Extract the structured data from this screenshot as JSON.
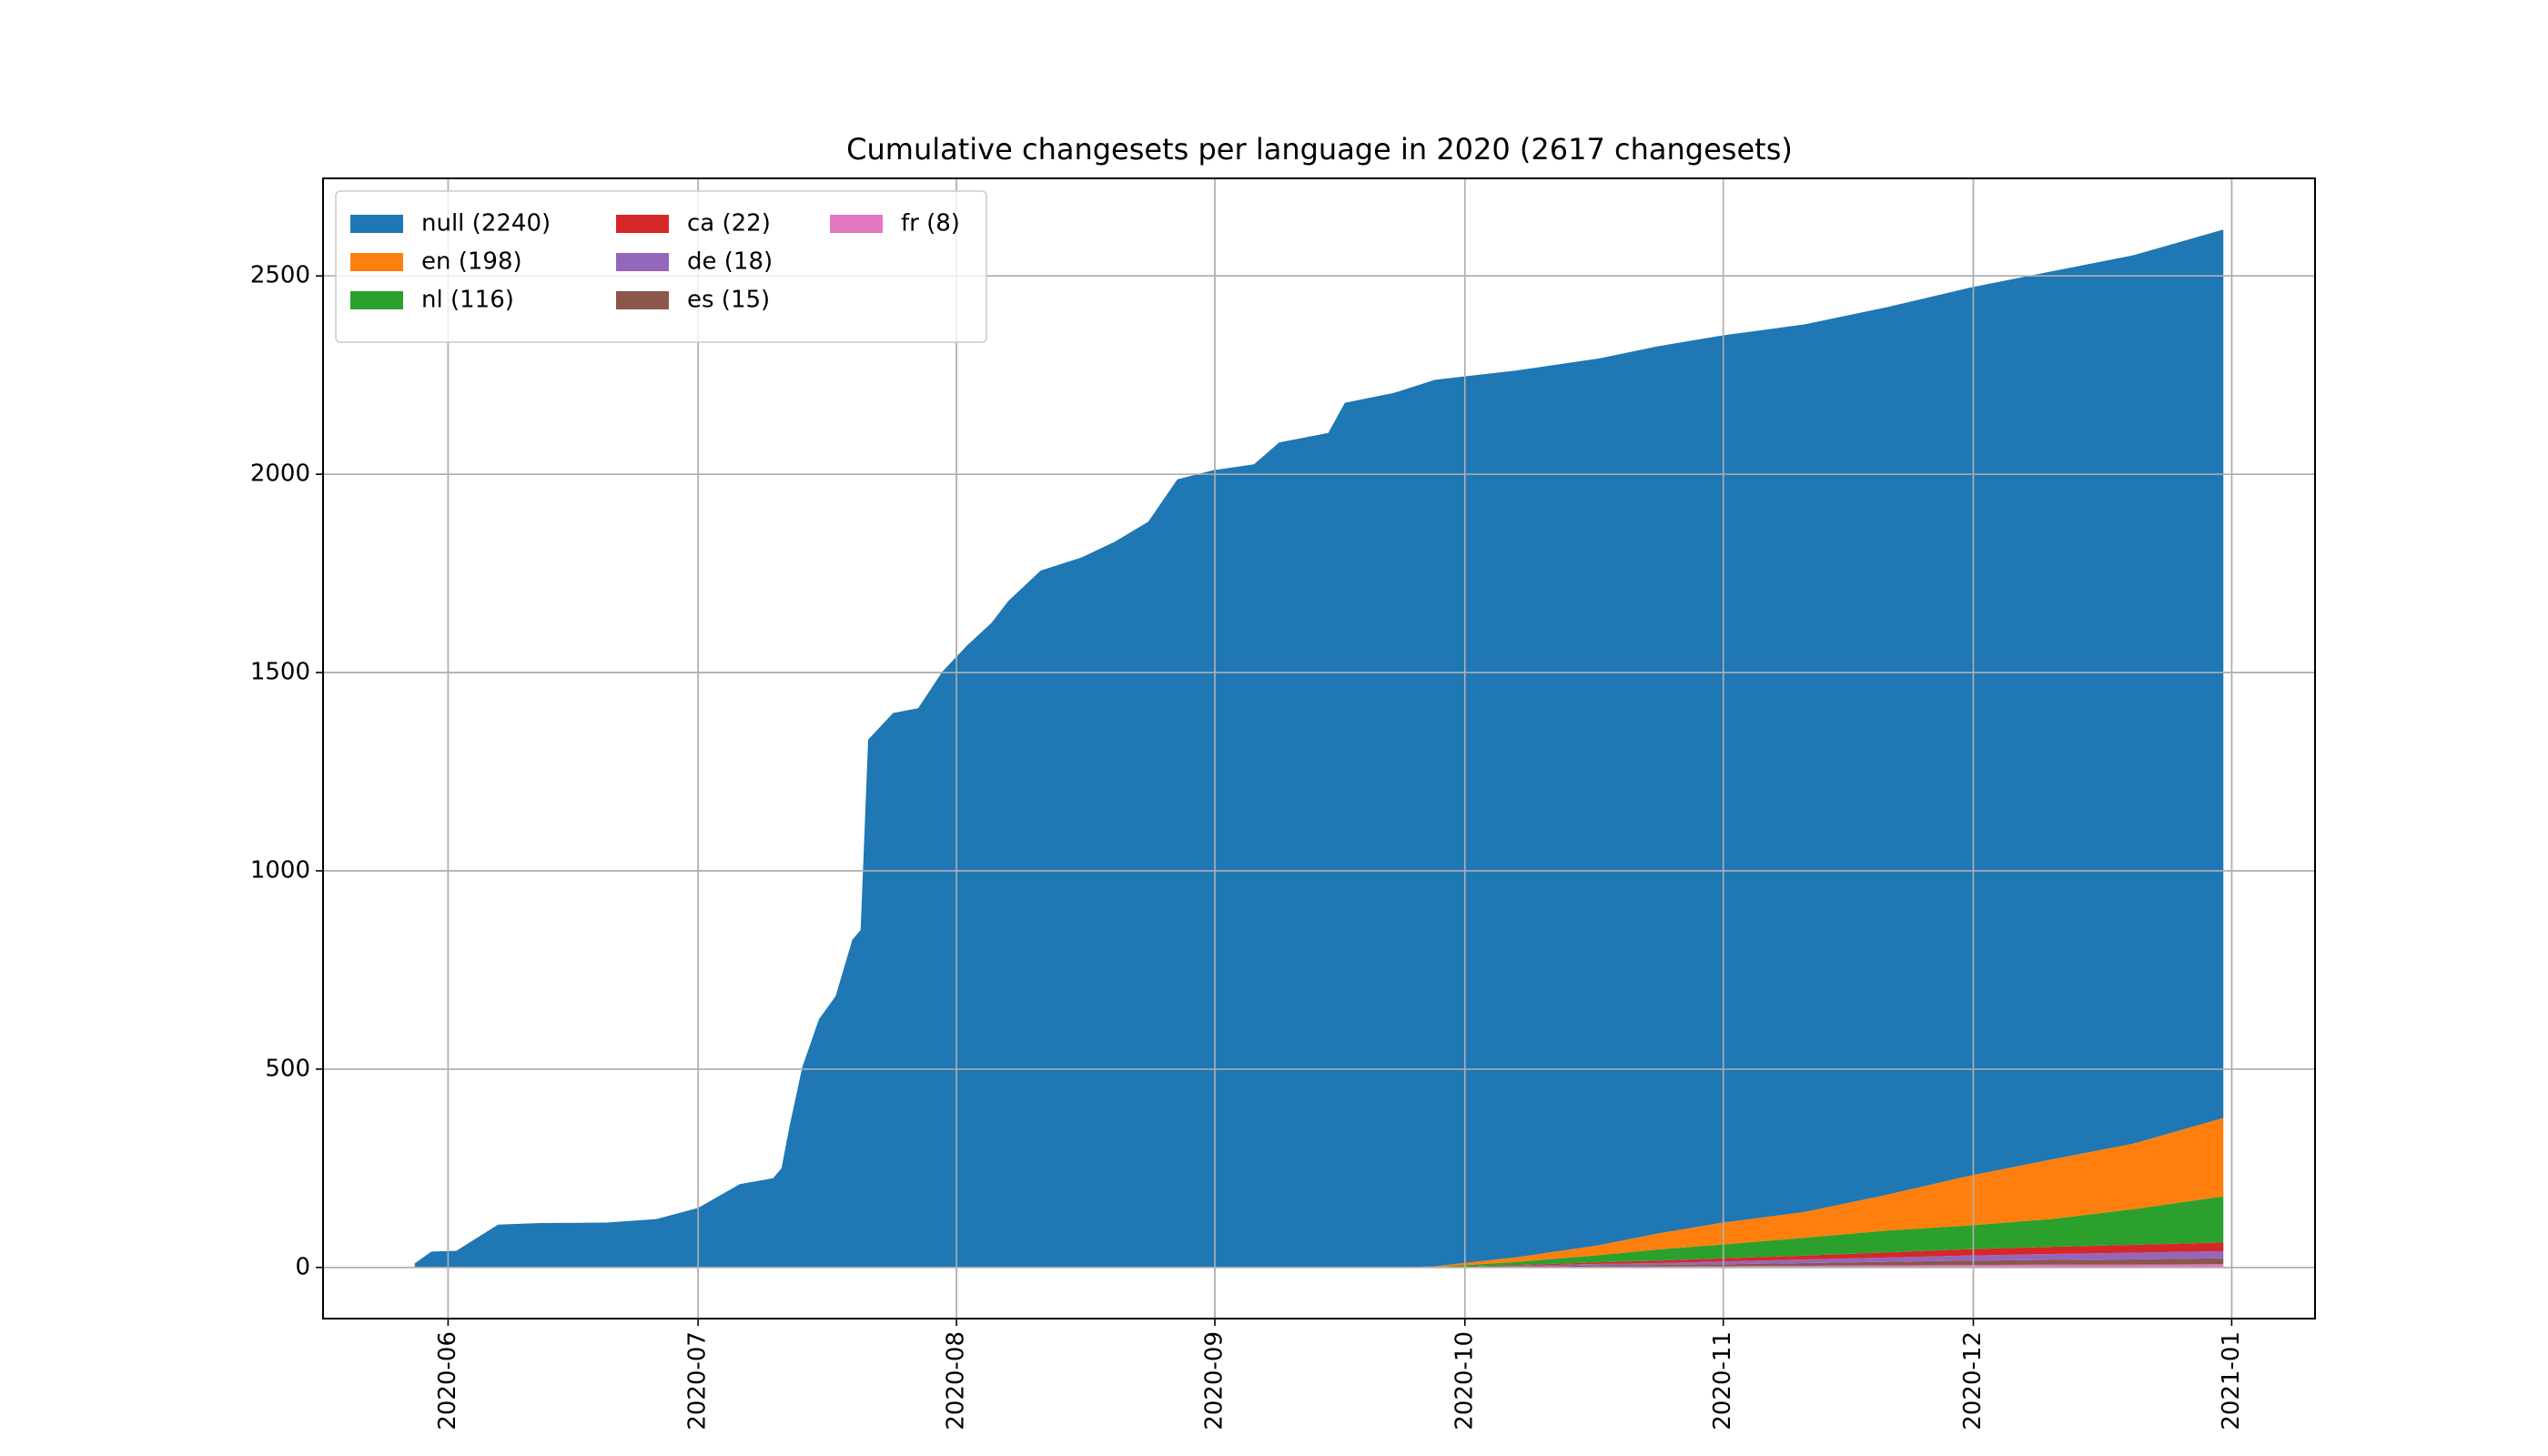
{
  "chart_data": {
    "type": "stackedarea",
    "title": "Cumulative changesets per language in 2020 (2617 changesets)",
    "x": [
      148,
      150,
      153,
      158,
      163,
      171,
      177,
      182,
      187,
      191,
      192,
      193,
      194.5,
      196.5,
      198.5,
      200.5,
      201.5,
      202.4,
      205.4,
      208.4,
      211.3,
      214.3,
      217.2,
      219.2,
      223.1,
      228,
      232,
      236,
      239.5,
      243.8,
      248.7,
      251.7,
      257.6,
      259.6,
      265.5,
      270.4,
      280.3,
      290.1,
      297,
      304.9,
      314.8,
      324.6,
      334.5,
      344.3,
      354.2,
      365
    ],
    "series": [
      {
        "name": "null (2240)",
        "color": "#1f77b4",
        "values": [
          10,
          40,
          42,
          108,
          112,
          113,
          122,
          150,
          210,
          225,
          250,
          359,
          505,
          626,
          684,
          826,
          851,
          1331,
          1398,
          1410,
          1502,
          1569,
          1625,
          1680,
          1757,
          1790,
          1830,
          1880,
          1987,
          2010,
          2025,
          2080,
          2104,
          2180,
          2205,
          2235,
          2236,
          2236,
          2237,
          2237,
          2238,
          2238,
          2239,
          2239,
          2240,
          2240
        ]
      },
      {
        "name": "en (198)",
        "color": "#ff7f0e",
        "values": [
          0,
          0,
          0,
          0,
          0,
          0,
          0,
          0,
          0,
          0,
          0,
          0,
          0,
          0,
          0,
          0,
          0,
          0,
          0,
          0,
          0,
          0,
          0,
          0,
          0,
          0,
          0,
          0,
          0,
          0,
          0,
          0,
          0,
          0,
          0,
          2,
          12,
          25,
          40,
          55,
          65,
          90,
          125,
          150,
          165,
          198
        ]
      },
      {
        "name": "nl (116)",
        "color": "#2ca02c",
        "values": [
          0,
          0,
          0,
          0,
          0,
          0,
          0,
          0,
          0,
          0,
          0,
          0,
          0,
          0,
          0,
          0,
          0,
          0,
          0,
          0,
          0,
          0,
          0,
          0,
          0,
          0,
          0,
          0,
          0,
          0,
          0,
          0,
          0,
          0,
          0,
          1,
          8,
          18,
          28,
          35,
          45,
          55,
          60,
          70,
          90,
          116
        ]
      },
      {
        "name": "ca (22)",
        "color": "#d62728",
        "values": [
          0,
          0,
          0,
          0,
          0,
          0,
          0,
          0,
          0,
          0,
          0,
          0,
          0,
          0,
          0,
          0,
          0,
          0,
          0,
          0,
          0,
          0,
          0,
          0,
          0,
          0,
          0,
          0,
          0,
          0,
          0,
          0,
          0,
          0,
          0,
          0,
          2,
          4,
          6,
          8,
          10,
          13,
          16,
          18,
          20,
          22
        ]
      },
      {
        "name": "de (18)",
        "color": "#9467bd",
        "values": [
          0,
          0,
          0,
          0,
          0,
          0,
          0,
          0,
          0,
          0,
          0,
          0,
          0,
          0,
          0,
          0,
          0,
          0,
          0,
          0,
          0,
          0,
          0,
          0,
          0,
          0,
          0,
          0,
          0,
          0,
          0,
          0,
          0,
          0,
          0,
          0,
          2,
          4,
          5,
          7,
          9,
          11,
          13,
          15,
          17,
          18
        ]
      },
      {
        "name": "es (15)",
        "color": "#8c564b",
        "values": [
          0,
          0,
          0,
          0,
          0,
          0,
          0,
          0,
          0,
          0,
          0,
          0,
          0,
          0,
          0,
          0,
          0,
          0,
          0,
          0,
          0,
          0,
          0,
          0,
          0,
          0,
          0,
          0,
          0,
          0,
          0,
          0,
          0,
          0,
          0,
          0,
          1,
          3,
          4,
          5,
          7,
          9,
          11,
          12,
          13,
          15
        ]
      },
      {
        "name": "fr (8)",
        "color": "#e377c2",
        "values": [
          0,
          0,
          0,
          0,
          0,
          0,
          0,
          0,
          0,
          0,
          0,
          0,
          0,
          0,
          0,
          0,
          0,
          0,
          0,
          0,
          0,
          0,
          0,
          0,
          0,
          0,
          0,
          0,
          0,
          0,
          0,
          0,
          0,
          0,
          0,
          0,
          1,
          2,
          2,
          3,
          4,
          5,
          6,
          7,
          7,
          8
        ]
      }
    ],
    "xlim": [
      137,
      376
    ],
    "xticks": [
      {
        "value": 152,
        "label": "2020-06"
      },
      {
        "value": 182,
        "label": "2020-07"
      },
      {
        "value": 213,
        "label": "2020-08"
      },
      {
        "value": 244,
        "label": "2020-09"
      },
      {
        "value": 274,
        "label": "2020-10"
      },
      {
        "value": 305,
        "label": "2020-11"
      },
      {
        "value": 335,
        "label": "2020-12"
      },
      {
        "value": 366,
        "label": "2021-01"
      }
    ],
    "ylim": [
      -129,
      2746
    ],
    "yticks": [
      0,
      500,
      1000,
      1500,
      2000,
      2500
    ],
    "grid": true,
    "legend": "upper left"
  }
}
